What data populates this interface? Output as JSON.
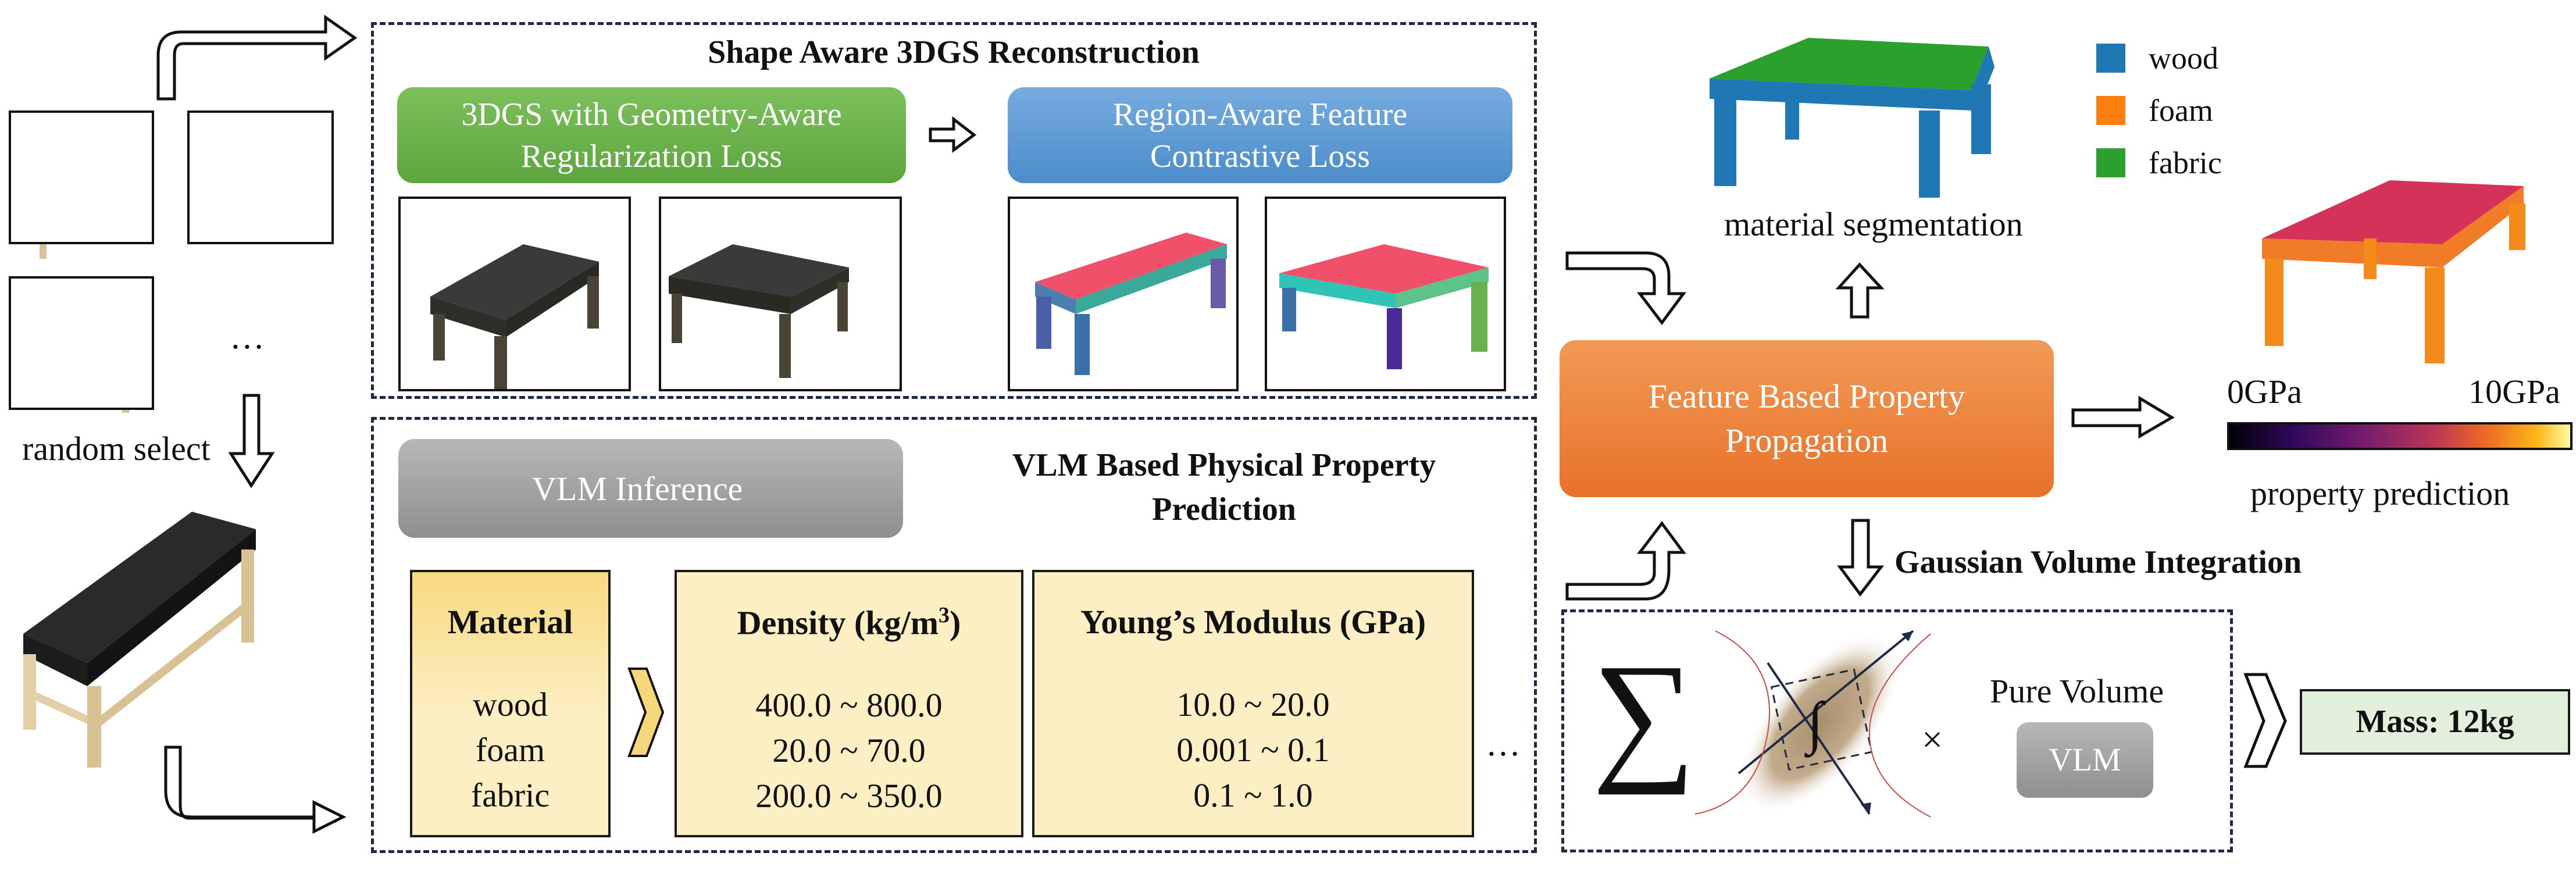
{
  "left": {
    "ellipsis": "…",
    "random_select": "random select"
  },
  "reconstruction": {
    "title": "Shape Aware 3DGS Reconstruction",
    "green_button": "3DGS with Geometry-Aware Regularization Loss",
    "blue_button": "Region-Aware Feature Contrastive Loss"
  },
  "vlm": {
    "title": "VLM Based Physical Property Prediction",
    "inference_button": "VLM Inference",
    "material_header": "Material",
    "materials": [
      "wood",
      "foam",
      "fabric"
    ],
    "density_header": "Density (kg/m",
    "density_sup": "3",
    "density_close": ")",
    "densities": [
      "400.0 ~ 800.0",
      "20.0 ~ 70.0",
      "200.0 ~ 350.0"
    ],
    "youngs_header": "Young’s Modulus (GPa)",
    "youngs": [
      "10.0 ~ 20.0",
      "0.001 ~ 0.1",
      "0.1 ~ 1.0"
    ],
    "ellipsis": "…"
  },
  "propagation": {
    "label": "Feature Based Property Propagation",
    "segmentation_label": "material segmentation",
    "gaussian_label": "Gaussian Volume Integration"
  },
  "legend": {
    "items": [
      {
        "label": "wood",
        "color": "#1f77b4"
      },
      {
        "label": "foam",
        "color": "#ff7f0e"
      },
      {
        "label": "fabric",
        "color": "#2ca02c"
      }
    ]
  },
  "property": {
    "min_label": "0GPa",
    "max_label": "10GPa",
    "caption": "property prediction"
  },
  "integration": {
    "sigma": "∑",
    "integral": "∫",
    "times": "×",
    "pure_volume": "Pure Volume",
    "vlm_button": "VLM",
    "mass_label": "Mass: 12kg"
  },
  "colors": {
    "green": "#6ab04c",
    "blue": "#5b9bd5",
    "orange": "#ee7d31",
    "gray": "#a6a6a6",
    "yellow_box": "#fdefc4",
    "mass_box": "#e2efda"
  }
}
